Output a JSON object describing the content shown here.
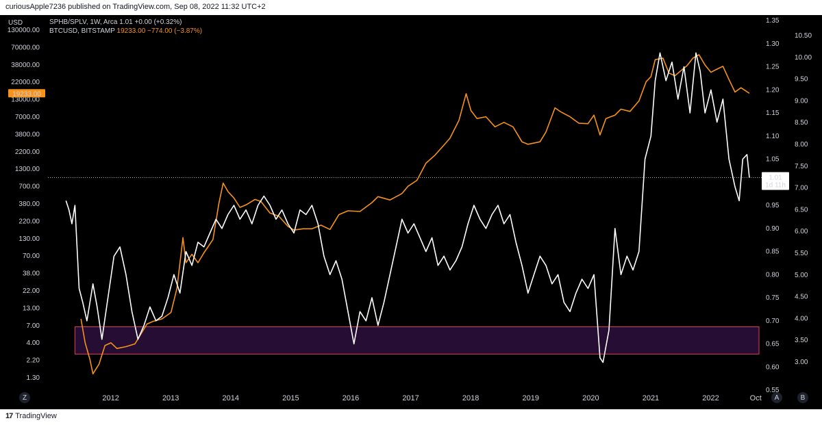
{
  "header": {
    "published": "curiousApple7236 published on TradingView.com, Sep 08, 2022 11:32 UTC+2"
  },
  "legend": {
    "series1": "SPHB/SPLV, 1W, Arca  1.01  +0.00 (+0.32%)",
    "series2_name": "BTCUSD, BITSTAMP",
    "series2_values": "19233.00  −774.00 (−3.87%)"
  },
  "axis": {
    "left_unit": "USD",
    "left_ticks": [
      "130000.00",
      "70000.00",
      "38000.00",
      "22000.00",
      "13000.00",
      "7000.00",
      "3800.00",
      "2200.00",
      "1300.00",
      "700.00",
      "380.00",
      "220.00",
      "130.00",
      "70.00",
      "38.00",
      "22.00",
      "13.00",
      "7.00",
      "4.00",
      "2.20",
      "1.30"
    ],
    "btc_price_tag": "19233.00",
    "ratio_ticks": [
      "1.35",
      "1.30",
      "1.25",
      "1.20",
      "1.15",
      "1.10",
      "1.05",
      "1.00",
      "0.95",
      "0.90",
      "0.85",
      "0.80",
      "0.75",
      "0.70",
      "0.65",
      "0.60",
      "0.55"
    ],
    "right_ticks": [
      "10.50",
      "10.00",
      "9.50",
      "9.00",
      "8.50",
      "8.00",
      "7.50",
      "7.00",
      "6.50",
      "6.00",
      "5.50",
      "5.00",
      "4.50",
      "4.00",
      "3.50",
      "3.00"
    ],
    "current_tag": {
      "value": "1.01",
      "countdown": "1d 11h"
    },
    "x_ticks": [
      "2012",
      "2013",
      "2014",
      "2015",
      "2016",
      "2017",
      "2018",
      "2019",
      "2020",
      "2021",
      "2022",
      "Oct"
    ],
    "corner_left": "Z",
    "corner_right_a": "A",
    "corner_right_b": "B"
  },
  "chart_data": {
    "type": "line",
    "series": [
      {
        "name": "BTCUSD, BITSTAMP",
        "color": "#f7931a",
        "scale": "log",
        "points": [
          [
            2011.55,
            13
          ],
          [
            2011.62,
            6
          ],
          [
            2011.7,
            3.5
          ],
          [
            2011.75,
            2.2
          ],
          [
            2011.85,
            3
          ],
          [
            2011.95,
            5.5
          ],
          [
            2012.05,
            6
          ],
          [
            2012.15,
            5
          ],
          [
            2012.3,
            5.3
          ],
          [
            2012.45,
            5.8
          ],
          [
            2012.55,
            8
          ],
          [
            2012.65,
            11
          ],
          [
            2012.75,
            12
          ],
          [
            2012.9,
            13
          ],
          [
            2013.05,
            16
          ],
          [
            2013.15,
            35
          ],
          [
            2013.25,
            180
          ],
          [
            2013.3,
            80
          ],
          [
            2013.4,
            105
          ],
          [
            2013.5,
            80
          ],
          [
            2013.6,
            110
          ],
          [
            2013.75,
            170
          ],
          [
            2013.85,
            550
          ],
          [
            2013.92,
            1050
          ],
          [
            2014.0,
            800
          ],
          [
            2014.1,
            650
          ],
          [
            2014.2,
            480
          ],
          [
            2014.3,
            520
          ],
          [
            2014.45,
            620
          ],
          [
            2014.55,
            580
          ],
          [
            2014.7,
            400
          ],
          [
            2014.85,
            360
          ],
          [
            2015.0,
            260
          ],
          [
            2015.1,
            230
          ],
          [
            2015.25,
            240
          ],
          [
            2015.4,
            240
          ],
          [
            2015.55,
            270
          ],
          [
            2015.7,
            235
          ],
          [
            2015.85,
            380
          ],
          [
            2016.0,
            430
          ],
          [
            2016.2,
            420
          ],
          [
            2016.4,
            560
          ],
          [
            2016.5,
            680
          ],
          [
            2016.7,
            610
          ],
          [
            2016.9,
            750
          ],
          [
            2017.0,
            950
          ],
          [
            2017.15,
            1150
          ],
          [
            2017.3,
            2000
          ],
          [
            2017.45,
            2600
          ],
          [
            2017.6,
            3600
          ],
          [
            2017.7,
            4500
          ],
          [
            2017.85,
            8000
          ],
          [
            2017.97,
            19000
          ],
          [
            2018.05,
            11000
          ],
          [
            2018.15,
            8500
          ],
          [
            2018.3,
            9000
          ],
          [
            2018.45,
            6500
          ],
          [
            2018.6,
            7500
          ],
          [
            2018.75,
            6500
          ],
          [
            2018.9,
            4000
          ],
          [
            2019.0,
            3700
          ],
          [
            2019.2,
            4000
          ],
          [
            2019.3,
            5500
          ],
          [
            2019.45,
            12000
          ],
          [
            2019.55,
            10500
          ],
          [
            2019.7,
            9000
          ],
          [
            2019.85,
            7300
          ],
          [
            2020.0,
            7200
          ],
          [
            2020.1,
            9500
          ],
          [
            2020.2,
            5000
          ],
          [
            2020.3,
            8500
          ],
          [
            2020.45,
            9500
          ],
          [
            2020.55,
            11500
          ],
          [
            2020.7,
            10700
          ],
          [
            2020.85,
            15000
          ],
          [
            2020.97,
            28000
          ],
          [
            2021.05,
            33000
          ],
          [
            2021.12,
            57000
          ],
          [
            2021.25,
            60000
          ],
          [
            2021.35,
            37000
          ],
          [
            2021.45,
            34000
          ],
          [
            2021.55,
            40000
          ],
          [
            2021.65,
            47000
          ],
          [
            2021.75,
            60000
          ],
          [
            2021.85,
            67000
          ],
          [
            2021.95,
            48000
          ],
          [
            2022.05,
            38000
          ],
          [
            2022.15,
            42000
          ],
          [
            2022.25,
            46000
          ],
          [
            2022.35,
            30000
          ],
          [
            2022.45,
            20000
          ],
          [
            2022.55,
            23000
          ],
          [
            2022.62,
            21000
          ],
          [
            2022.69,
            19233
          ]
        ]
      },
      {
        "name": "SPHB/SPLV, 1W, Arca",
        "color": "#ffffff",
        "scale": "linear",
        "points": [
          [
            2011.3,
            0.96
          ],
          [
            2011.35,
            0.94
          ],
          [
            2011.4,
            0.91
          ],
          [
            2011.45,
            0.95
          ],
          [
            2011.52,
            0.77
          ],
          [
            2011.58,
            0.74
          ],
          [
            2011.65,
            0.7
          ],
          [
            2011.75,
            0.78
          ],
          [
            2011.82,
            0.73
          ],
          [
            2011.9,
            0.66
          ],
          [
            2012.0,
            0.75
          ],
          [
            2012.1,
            0.84
          ],
          [
            2012.2,
            0.86
          ],
          [
            2012.3,
            0.8
          ],
          [
            2012.4,
            0.72
          ],
          [
            2012.5,
            0.66
          ],
          [
            2012.6,
            0.69
          ],
          [
            2012.7,
            0.73
          ],
          [
            2012.8,
            0.7
          ],
          [
            2012.9,
            0.71
          ],
          [
            2013.0,
            0.75
          ],
          [
            2013.1,
            0.8
          ],
          [
            2013.2,
            0.76
          ],
          [
            2013.3,
            0.85
          ],
          [
            2013.4,
            0.82
          ],
          [
            2013.5,
            0.87
          ],
          [
            2013.6,
            0.86
          ],
          [
            2013.7,
            0.89
          ],
          [
            2013.8,
            0.92
          ],
          [
            2013.9,
            0.9
          ],
          [
            2014.0,
            0.93
          ],
          [
            2014.1,
            0.95
          ],
          [
            2014.2,
            0.92
          ],
          [
            2014.3,
            0.94
          ],
          [
            2014.4,
            0.91
          ],
          [
            2014.5,
            0.95
          ],
          [
            2014.6,
            0.97
          ],
          [
            2014.7,
            0.95
          ],
          [
            2014.8,
            0.92
          ],
          [
            2014.9,
            0.94
          ],
          [
            2015.0,
            0.91
          ],
          [
            2015.1,
            0.89
          ],
          [
            2015.2,
            0.94
          ],
          [
            2015.3,
            0.93
          ],
          [
            2015.4,
            0.95
          ],
          [
            2015.5,
            0.91
          ],
          [
            2015.6,
            0.84
          ],
          [
            2015.7,
            0.8
          ],
          [
            2015.8,
            0.83
          ],
          [
            2015.9,
            0.79
          ],
          [
            2016.0,
            0.72
          ],
          [
            2016.1,
            0.65
          ],
          [
            2016.2,
            0.72
          ],
          [
            2016.3,
            0.7
          ],
          [
            2016.4,
            0.75
          ],
          [
            2016.5,
            0.69
          ],
          [
            2016.6,
            0.74
          ],
          [
            2016.7,
            0.8
          ],
          [
            2016.8,
            0.86
          ],
          [
            2016.9,
            0.92
          ],
          [
            2017.0,
            0.89
          ],
          [
            2017.1,
            0.91
          ],
          [
            2017.2,
            0.88
          ],
          [
            2017.3,
            0.85
          ],
          [
            2017.4,
            0.88
          ],
          [
            2017.5,
            0.82
          ],
          [
            2017.6,
            0.84
          ],
          [
            2017.7,
            0.81
          ],
          [
            2017.8,
            0.83
          ],
          [
            2017.9,
            0.86
          ],
          [
            2018.0,
            0.91
          ],
          [
            2018.1,
            0.95
          ],
          [
            2018.2,
            0.92
          ],
          [
            2018.3,
            0.9
          ],
          [
            2018.4,
            0.93
          ],
          [
            2018.5,
            0.95
          ],
          [
            2018.6,
            0.91
          ],
          [
            2018.7,
            0.93
          ],
          [
            2018.8,
            0.87
          ],
          [
            2018.9,
            0.82
          ],
          [
            2019.0,
            0.76
          ],
          [
            2019.1,
            0.8
          ],
          [
            2019.2,
            0.84
          ],
          [
            2019.3,
            0.82
          ],
          [
            2019.4,
            0.78
          ],
          [
            2019.5,
            0.8
          ],
          [
            2019.6,
            0.74
          ],
          [
            2019.7,
            0.72
          ],
          [
            2019.8,
            0.76
          ],
          [
            2019.9,
            0.79
          ],
          [
            2020.0,
            0.77
          ],
          [
            2020.1,
            0.8
          ],
          [
            2020.2,
            0.62
          ],
          [
            2020.25,
            0.61
          ],
          [
            2020.35,
            0.68
          ],
          [
            2020.45,
            0.9
          ],
          [
            2020.55,
            0.8
          ],
          [
            2020.65,
            0.84
          ],
          [
            2020.75,
            0.81
          ],
          [
            2020.85,
            0.85
          ],
          [
            2020.95,
            1.05
          ],
          [
            2021.05,
            1.1
          ],
          [
            2021.12,
            1.22
          ],
          [
            2021.2,
            1.28
          ],
          [
            2021.3,
            1.22
          ],
          [
            2021.4,
            1.26
          ],
          [
            2021.5,
            1.18
          ],
          [
            2021.6,
            1.25
          ],
          [
            2021.7,
            1.15
          ],
          [
            2021.8,
            1.28
          ],
          [
            2021.87,
            1.24
          ],
          [
            2021.95,
            1.15
          ],
          [
            2022.05,
            1.2
          ],
          [
            2022.15,
            1.13
          ],
          [
            2022.25,
            1.18
          ],
          [
            2022.35,
            1.05
          ],
          [
            2022.45,
            0.99
          ],
          [
            2022.52,
            0.96
          ],
          [
            2022.58,
            1.05
          ],
          [
            2022.65,
            1.06
          ],
          [
            2022.69,
            1.01
          ]
        ]
      }
    ],
    "annotations": [
      {
        "type": "rectangle",
        "label": "",
        "x_from": 2011.45,
        "x_to": 2022.85,
        "y_from": 0.628,
        "y_to": 0.687
      },
      {
        "type": "hline",
        "value": 1.01,
        "style": "dotted"
      }
    ],
    "xlim": [
      2011.0,
      2022.85
    ],
    "ylim_ratio": [
      0.55,
      1.35
    ],
    "ylim_btc_log": [
      1.3,
      130000
    ],
    "grid": false,
    "background": "#000000"
  }
}
